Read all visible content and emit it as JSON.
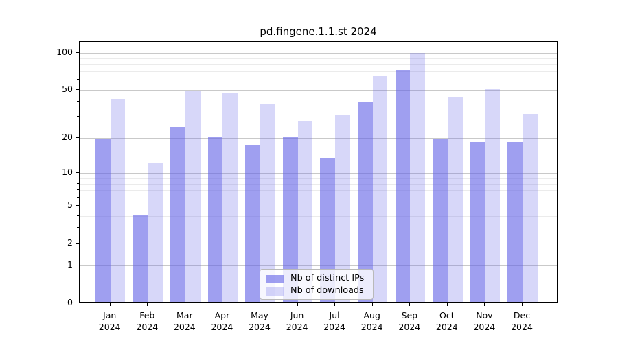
{
  "chart_data": {
    "type": "bar",
    "title": "pd.fingene.1.1.st 2024",
    "months": [
      "Jan",
      "Feb",
      "Mar",
      "Apr",
      "May",
      "Jun",
      "Jul",
      "Aug",
      "Sep",
      "Oct",
      "Nov",
      "Dec"
    ],
    "year": "2024",
    "series": [
      {
        "name": "Nb of distinct IPs",
        "color": "rgba(100,100,231,0.62)",
        "values": [
          19,
          4,
          24,
          20,
          17,
          20,
          13,
          39,
          70,
          19,
          18,
          18
        ]
      },
      {
        "name": "Nb of downloads",
        "color": "rgba(100,100,231,0.26)",
        "values": [
          41,
          12,
          47,
          46,
          37,
          27,
          30,
          63,
          97,
          42,
          49,
          31
        ]
      }
    ],
    "yscale": "log1p",
    "yticks": [
      0,
      1,
      2,
      5,
      10,
      20,
      50,
      100
    ],
    "yticks_minor": [
      3,
      4,
      6,
      7,
      8,
      9,
      30,
      40,
      60,
      70,
      80,
      90
    ],
    "ylim": [
      0,
      122
    ],
    "grid": "horizontal",
    "legend_position": "lower center",
    "frame_color": "#000000",
    "grid_major_color": "#c9c9c9",
    "grid_minor_color": "#ebebeb"
  }
}
